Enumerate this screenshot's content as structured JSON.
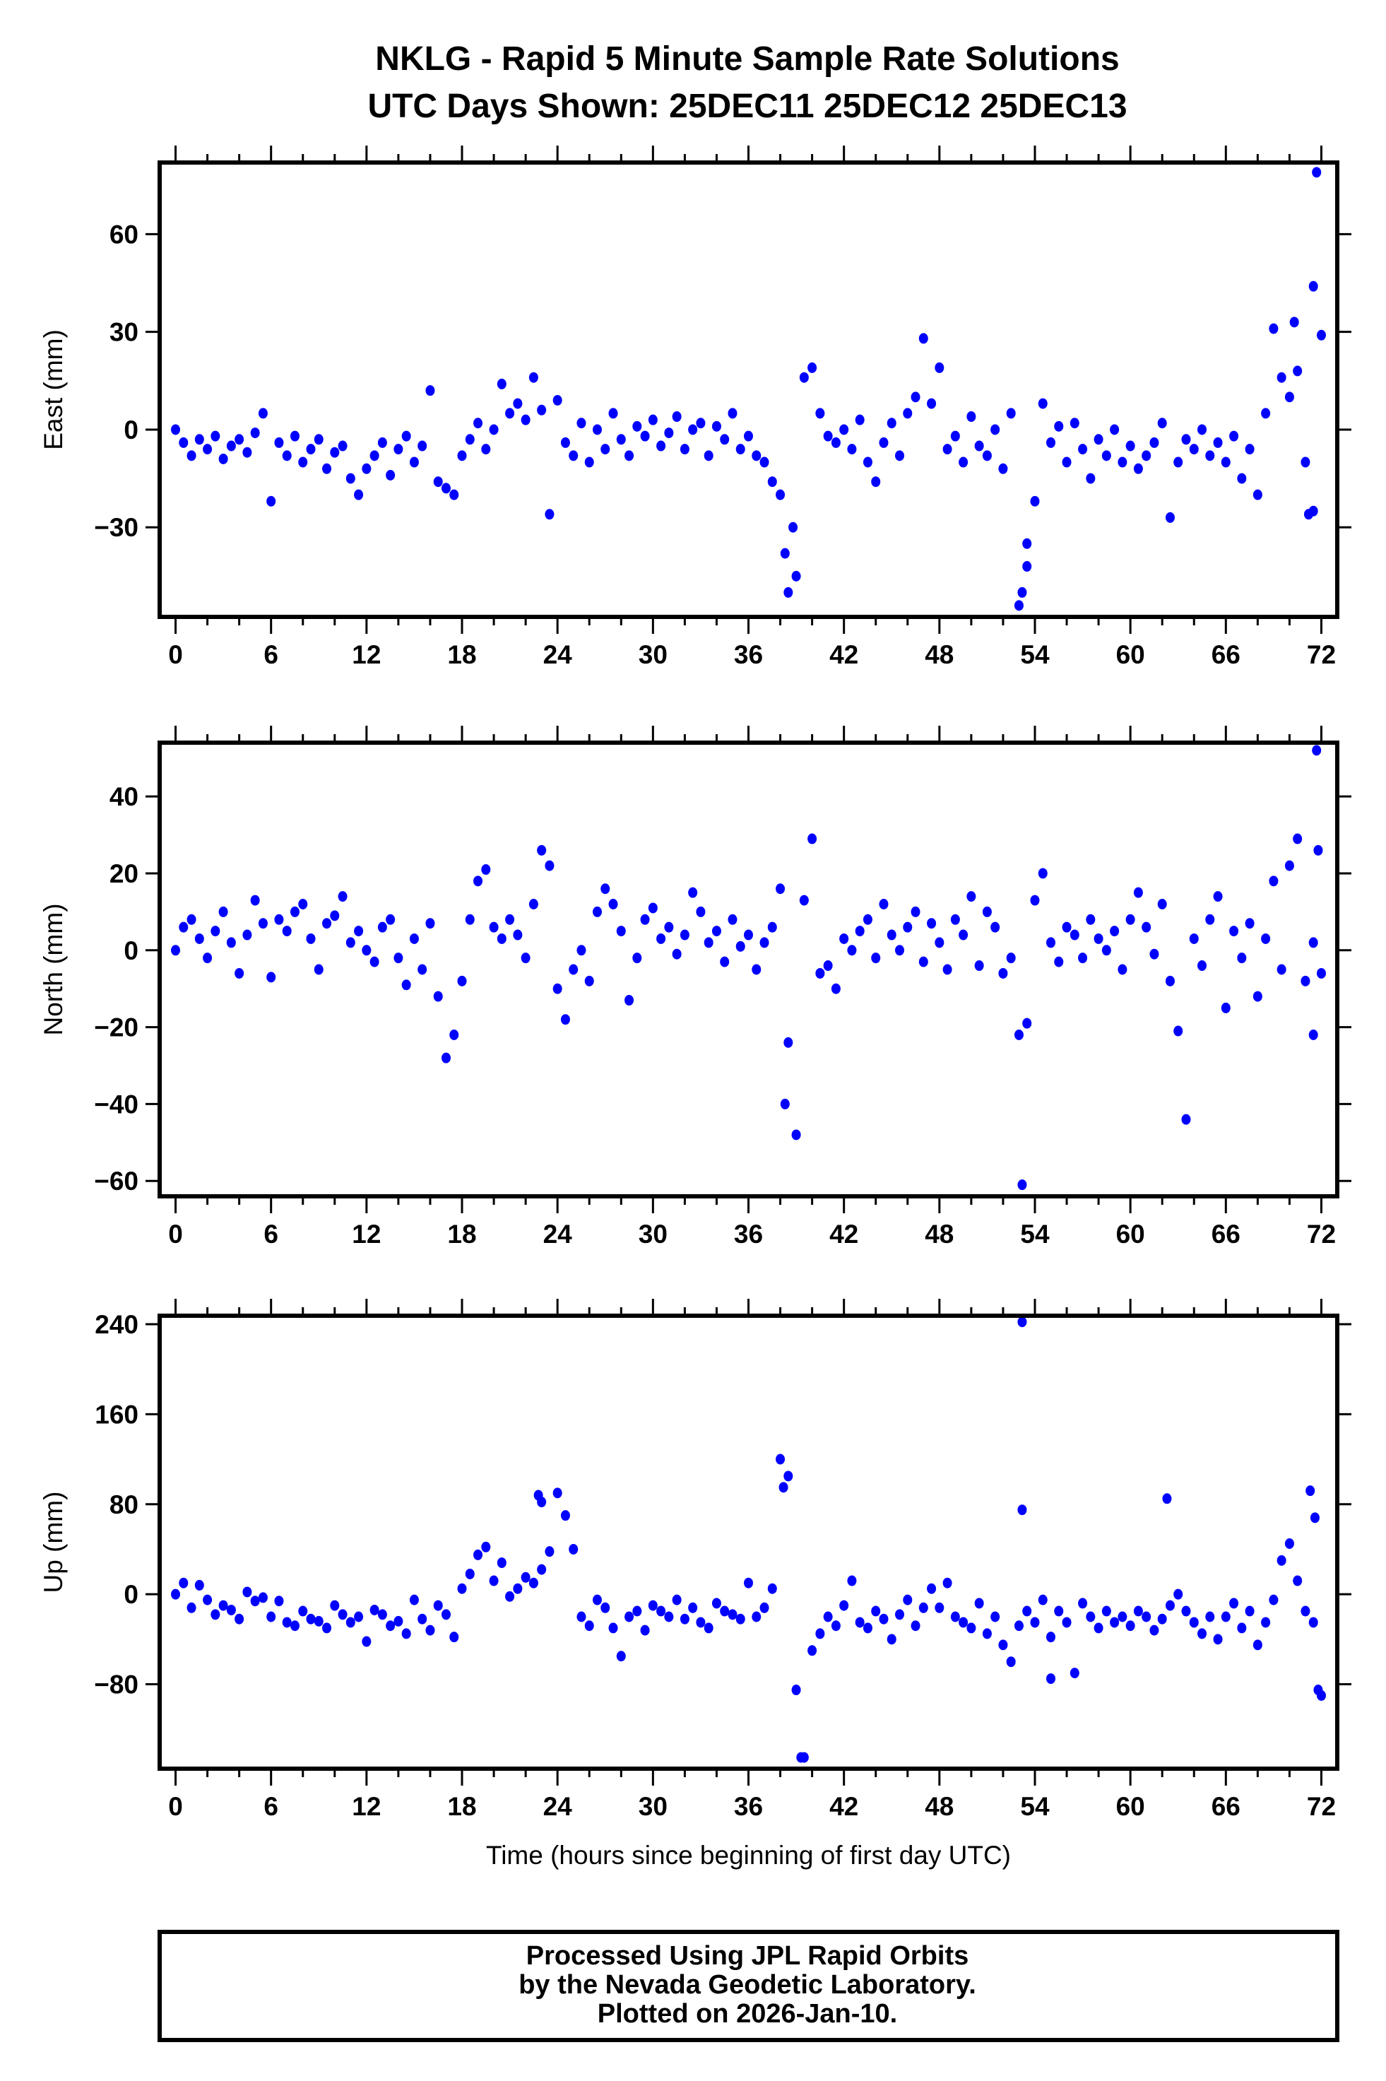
{
  "title": {
    "line1": "NKLG - Rapid 5 Minute Sample Rate Solutions",
    "line2": "UTC Days Shown:  25DEC11 25DEC12 25DEC13"
  },
  "footer": {
    "line1": "Processed Using JPL Rapid Orbits",
    "line2": "by the Nevada Geodetic Laboratory.",
    "line3": "Plotted on 2026-Jan-10."
  },
  "colors": {
    "points": "#0000ff",
    "axes": "#000000"
  },
  "chart_data": [
    {
      "type": "scatter",
      "title": "",
      "ylabel": "East (mm)",
      "xlabel": "",
      "xlim": [
        -1,
        73
      ],
      "ylim": [
        -57.5,
        82
      ],
      "xticks": [
        0,
        6,
        12,
        18,
        24,
        30,
        36,
        42,
        48,
        54,
        60,
        66,
        72
      ],
      "yticks": [
        -30,
        0,
        30,
        60
      ],
      "grid": false,
      "x_start": 0,
      "x_step": 0.5,
      "values": [
        0,
        -4,
        -8,
        -3,
        -6,
        -2,
        -9,
        -5,
        -3,
        -7,
        -1,
        5,
        -22,
        -4,
        -8,
        -2,
        -10,
        -6,
        -3,
        -12,
        -7,
        -5,
        -15,
        -20,
        -12,
        -8,
        -4,
        -14,
        -6,
        -2,
        -10,
        -5,
        12,
        -16,
        -18,
        -20,
        -8,
        -3,
        2,
        -6,
        0,
        14,
        5,
        8,
        3,
        16,
        6,
        -26,
        9,
        -4,
        -8,
        2,
        -10,
        0,
        -6,
        5,
        -3,
        -8,
        1,
        -2,
        3,
        -5,
        -1,
        4,
        -6,
        0,
        2,
        -8,
        1,
        -3,
        5,
        -6,
        -2,
        -8,
        -10,
        -16,
        -20,
        -50,
        -45,
        16,
        19,
        5,
        -2,
        -4,
        0,
        -6,
        3,
        -10,
        -16,
        -4,
        2,
        -8,
        5,
        10,
        28,
        8,
        19,
        -6,
        -2,
        -10,
        4,
        -5,
        -8,
        0,
        -12,
        5,
        -54,
        -35,
        -22,
        8,
        -4,
        1,
        -10,
        2,
        -6,
        -15,
        -3,
        -8,
        0,
        -10,
        -5,
        -12,
        -8,
        -4,
        2,
        -27,
        -10,
        -3,
        -6,
        0,
        -8,
        -4,
        -10,
        -2,
        -15,
        -6,
        -20,
        5,
        31,
        16,
        10,
        18,
        -10,
        -25,
        29
      ],
      "extra_points": [
        [
          38.3,
          -38
        ],
        [
          38.8,
          -30
        ],
        [
          53.2,
          -50
        ],
        [
          53.5,
          -42
        ],
        [
          70.3,
          33
        ],
        [
          71.2,
          -26
        ],
        [
          71.5,
          44
        ],
        [
          71.7,
          79
        ]
      ]
    },
    {
      "type": "scatter",
      "title": "",
      "ylabel": "North (mm)",
      "xlabel": "",
      "xlim": [
        -1,
        73
      ],
      "ylim": [
        -64,
        54
      ],
      "xticks": [
        0,
        6,
        12,
        18,
        24,
        30,
        36,
        42,
        48,
        54,
        60,
        66,
        72
      ],
      "yticks": [
        -60,
        -40,
        -20,
        0,
        20,
        40
      ],
      "grid": false,
      "x_start": 0,
      "x_step": 0.5,
      "values": [
        0,
        6,
        8,
        3,
        -2,
        5,
        10,
        2,
        -6,
        4,
        13,
        7,
        -7,
        8,
        5,
        10,
        12,
        3,
        -5,
        7,
        9,
        14,
        2,
        5,
        0,
        -3,
        6,
        8,
        -2,
        -9,
        3,
        -5,
        7,
        -12,
        -28,
        -22,
        -8,
        8,
        18,
        21,
        6,
        3,
        8,
        4,
        -2,
        12,
        26,
        22,
        -10,
        -18,
        -5,
        0,
        -8,
        10,
        16,
        12,
        5,
        -13,
        -2,
        8,
        11,
        3,
        6,
        -1,
        4,
        15,
        10,
        2,
        5,
        -3,
        8,
        1,
        4,
        -5,
        2,
        6,
        16,
        -24,
        -48,
        13,
        29,
        -6,
        -4,
        -10,
        3,
        0,
        5,
        8,
        -2,
        12,
        4,
        0,
        6,
        10,
        -3,
        7,
        2,
        -5,
        8,
        4,
        14,
        -4,
        10,
        6,
        -6,
        -2,
        -22,
        -19,
        13,
        20,
        2,
        -3,
        6,
        4,
        -2,
        8,
        3,
        0,
        5,
        -5,
        8,
        15,
        6,
        -1,
        12,
        -8,
        -21,
        -44,
        3,
        -4,
        8,
        14,
        -15,
        5,
        -2,
        7,
        -12,
        3,
        18,
        -5,
        22,
        29,
        -8,
        2,
        -6
      ],
      "extra_points": [
        [
          38.3,
          -40
        ],
        [
          53.2,
          -61
        ],
        [
          71.5,
          -22
        ],
        [
          71.7,
          52
        ],
        [
          71.8,
          26
        ]
      ]
    },
    {
      "type": "scatter",
      "title": "",
      "ylabel": "Up (mm)",
      "xlabel": "Time (hours since beginning of first day UTC)",
      "xlim": [
        -1,
        73
      ],
      "ylim": [
        -155,
        247.5
      ],
      "xticks": [
        0,
        6,
        12,
        18,
        24,
        30,
        36,
        42,
        48,
        54,
        60,
        66,
        72
      ],
      "yticks": [
        -80,
        0,
        80,
        160,
        240
      ],
      "grid": false,
      "x_start": 0,
      "x_step": 0.5,
      "values": [
        0,
        10,
        -12,
        8,
        -5,
        -18,
        -10,
        -14,
        -22,
        2,
        -6,
        -3,
        -20,
        -6,
        -25,
        -28,
        -15,
        -22,
        -24,
        -30,
        -10,
        -18,
        -25,
        -20,
        -42,
        -14,
        -18,
        -28,
        -24,
        -35,
        -5,
        -22,
        -32,
        -10,
        -18,
        -38,
        5,
        18,
        35,
        42,
        12,
        28,
        -2,
        5,
        15,
        10,
        22,
        38,
        90,
        70,
        40,
        -20,
        -28,
        -5,
        -12,
        -30,
        -55,
        -20,
        -15,
        -32,
        -10,
        -15,
        -20,
        -5,
        -22,
        -12,
        -25,
        -30,
        -8,
        -15,
        -18,
        -22,
        10,
        -20,
        -12,
        5,
        120,
        105,
        -85,
        -145,
        -50,
        -35,
        -20,
        -28,
        -10,
        12,
        -25,
        -30,
        -15,
        -22,
        -40,
        -18,
        -5,
        -28,
        -12,
        5,
        -12,
        10,
        -20,
        -25,
        -30,
        -8,
        -35,
        -20,
        -45,
        -60,
        -28,
        -15,
        -25,
        -5,
        -38,
        -15,
        -25,
        -70,
        -8,
        -20,
        -30,
        -15,
        -25,
        -20,
        -28,
        -15,
        -20,
        -32,
        -22,
        -10,
        0,
        -15,
        -25,
        -35,
        -20,
        -40,
        -20,
        -8,
        -30,
        -15,
        -45,
        -25,
        -5,
        30,
        45,
        12,
        -15,
        -25,
        -90
      ],
      "extra_points": [
        [
          22.8,
          88
        ],
        [
          23,
          82
        ],
        [
          38.2,
          95
        ],
        [
          39.3,
          -145
        ],
        [
          53.2,
          242
        ],
        [
          53.2,
          75
        ],
        [
          55,
          -75
        ],
        [
          62.3,
          85
        ],
        [
          71.3,
          92
        ],
        [
          71.6,
          68
        ],
        [
          71.8,
          -85
        ]
      ]
    }
  ]
}
